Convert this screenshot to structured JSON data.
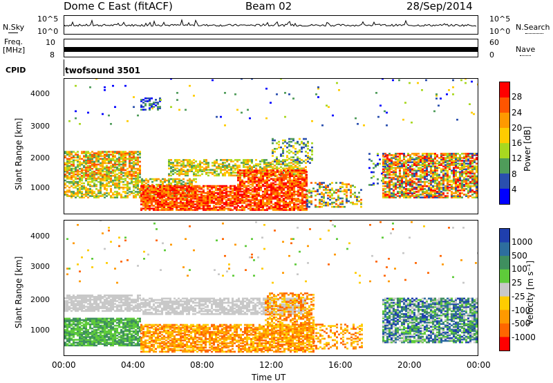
{
  "header": {
    "title": "Dome C East (fitACF)",
    "beam": "Beam 02",
    "date": "28/Sep/2014"
  },
  "strips": {
    "nsky_label": "N.Sky",
    "nsky_ticks": [
      "10^5",
      "10^0"
    ],
    "nsearch_label": "N.Search",
    "nsearch_ticks": [
      "10^5",
      "10^0"
    ],
    "freq_label": "Freq.",
    "freq_unit": "[MHz]",
    "freq_ticks": [
      "10",
      "8"
    ],
    "nave_label": "Nave",
    "nave_ticks": [
      "60",
      "0"
    ],
    "cpid_label": "CPID",
    "cpid_value": "twofsound 3501"
  },
  "chart_data": [
    {
      "type": "heatmap",
      "name": "power",
      "ylabel": "Slant Range [km]",
      "xlabel": "",
      "ylim": [
        200,
        4500
      ],
      "y_ticks": [
        "1000",
        "2000",
        "3000",
        "4000"
      ],
      "colorbar": {
        "label": "Power [dB]",
        "ticks": [
          "28",
          "24",
          "20",
          "16",
          "12",
          "8",
          "4"
        ],
        "colors": [
          "#ff0000",
          "#ff5500",
          "#ff9900",
          "#ffcc00",
          "#a8d820",
          "#4f9c5a",
          "#2a4fae",
          "#0000ff"
        ]
      }
    },
    {
      "type": "heatmap",
      "name": "velocity",
      "ylabel": "Slant Range [km]",
      "xlabel": "Time UT",
      "ylim": [
        200,
        4500
      ],
      "y_ticks": [
        "1000",
        "2000",
        "3000",
        "4000"
      ],
      "x_ticks": [
        "00:00",
        "04:00",
        "08:00",
        "12:00",
        "16:00",
        "20:00",
        "00:00"
      ],
      "colorbar": {
        "label": "Velocity [m s⁻¹]",
        "ticks": [
          "1000",
          "500",
          "100",
          "25",
          "-25",
          "-100",
          "-500",
          "-1000"
        ],
        "colors": [
          "#1f3fae",
          "#2d6e9e",
          "#3f8f5f",
          "#5ecb3a",
          "#c8c8c8",
          "#ffcc00",
          "#ff9900",
          "#ff6600",
          "#ff0000"
        ]
      }
    }
  ]
}
